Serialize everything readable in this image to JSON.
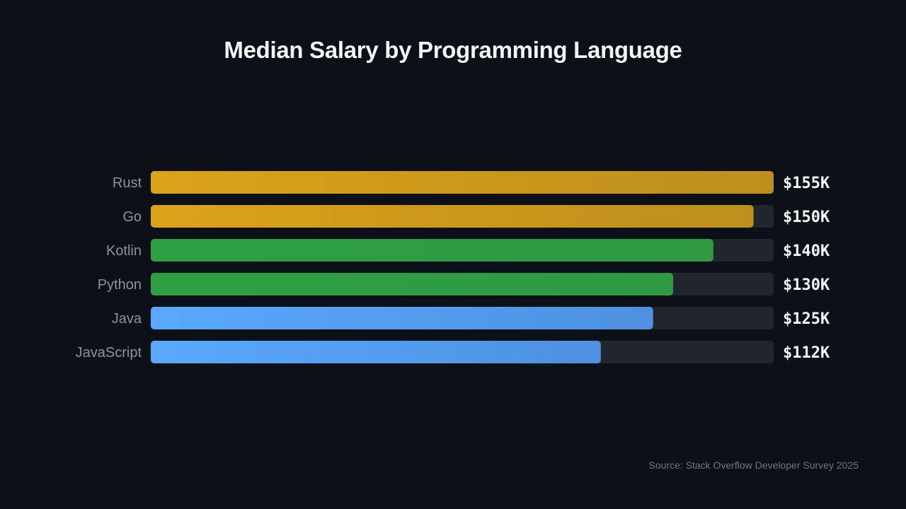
{
  "header": {
    "title": "Median Salary by Programming Language"
  },
  "footer": {
    "source": "Source: Stack Overflow Developer Survey 2025"
  },
  "colors": {
    "background": "#0d1117",
    "track": "#21262d",
    "gold": "#d4a017",
    "green": "#2ea043",
    "blue": "#58a6ff"
  },
  "chart_data": {
    "type": "bar",
    "orientation": "horizontal",
    "title": "Median Salary by Programming Language",
    "categories": [
      "Rust",
      "Go",
      "Kotlin",
      "Python",
      "Java",
      "JavaScript"
    ],
    "values": [
      155,
      150,
      140,
      130,
      125,
      112
    ],
    "value_labels": [
      "$155K",
      "$150K",
      "$140K",
      "$130K",
      "$125K",
      "$112K"
    ],
    "bar_colors": [
      "gold",
      "gold",
      "green",
      "green",
      "blue",
      "blue"
    ],
    "unit": "thousand USD",
    "xlim": [
      0,
      155
    ],
    "grid": false,
    "legend": "none"
  }
}
